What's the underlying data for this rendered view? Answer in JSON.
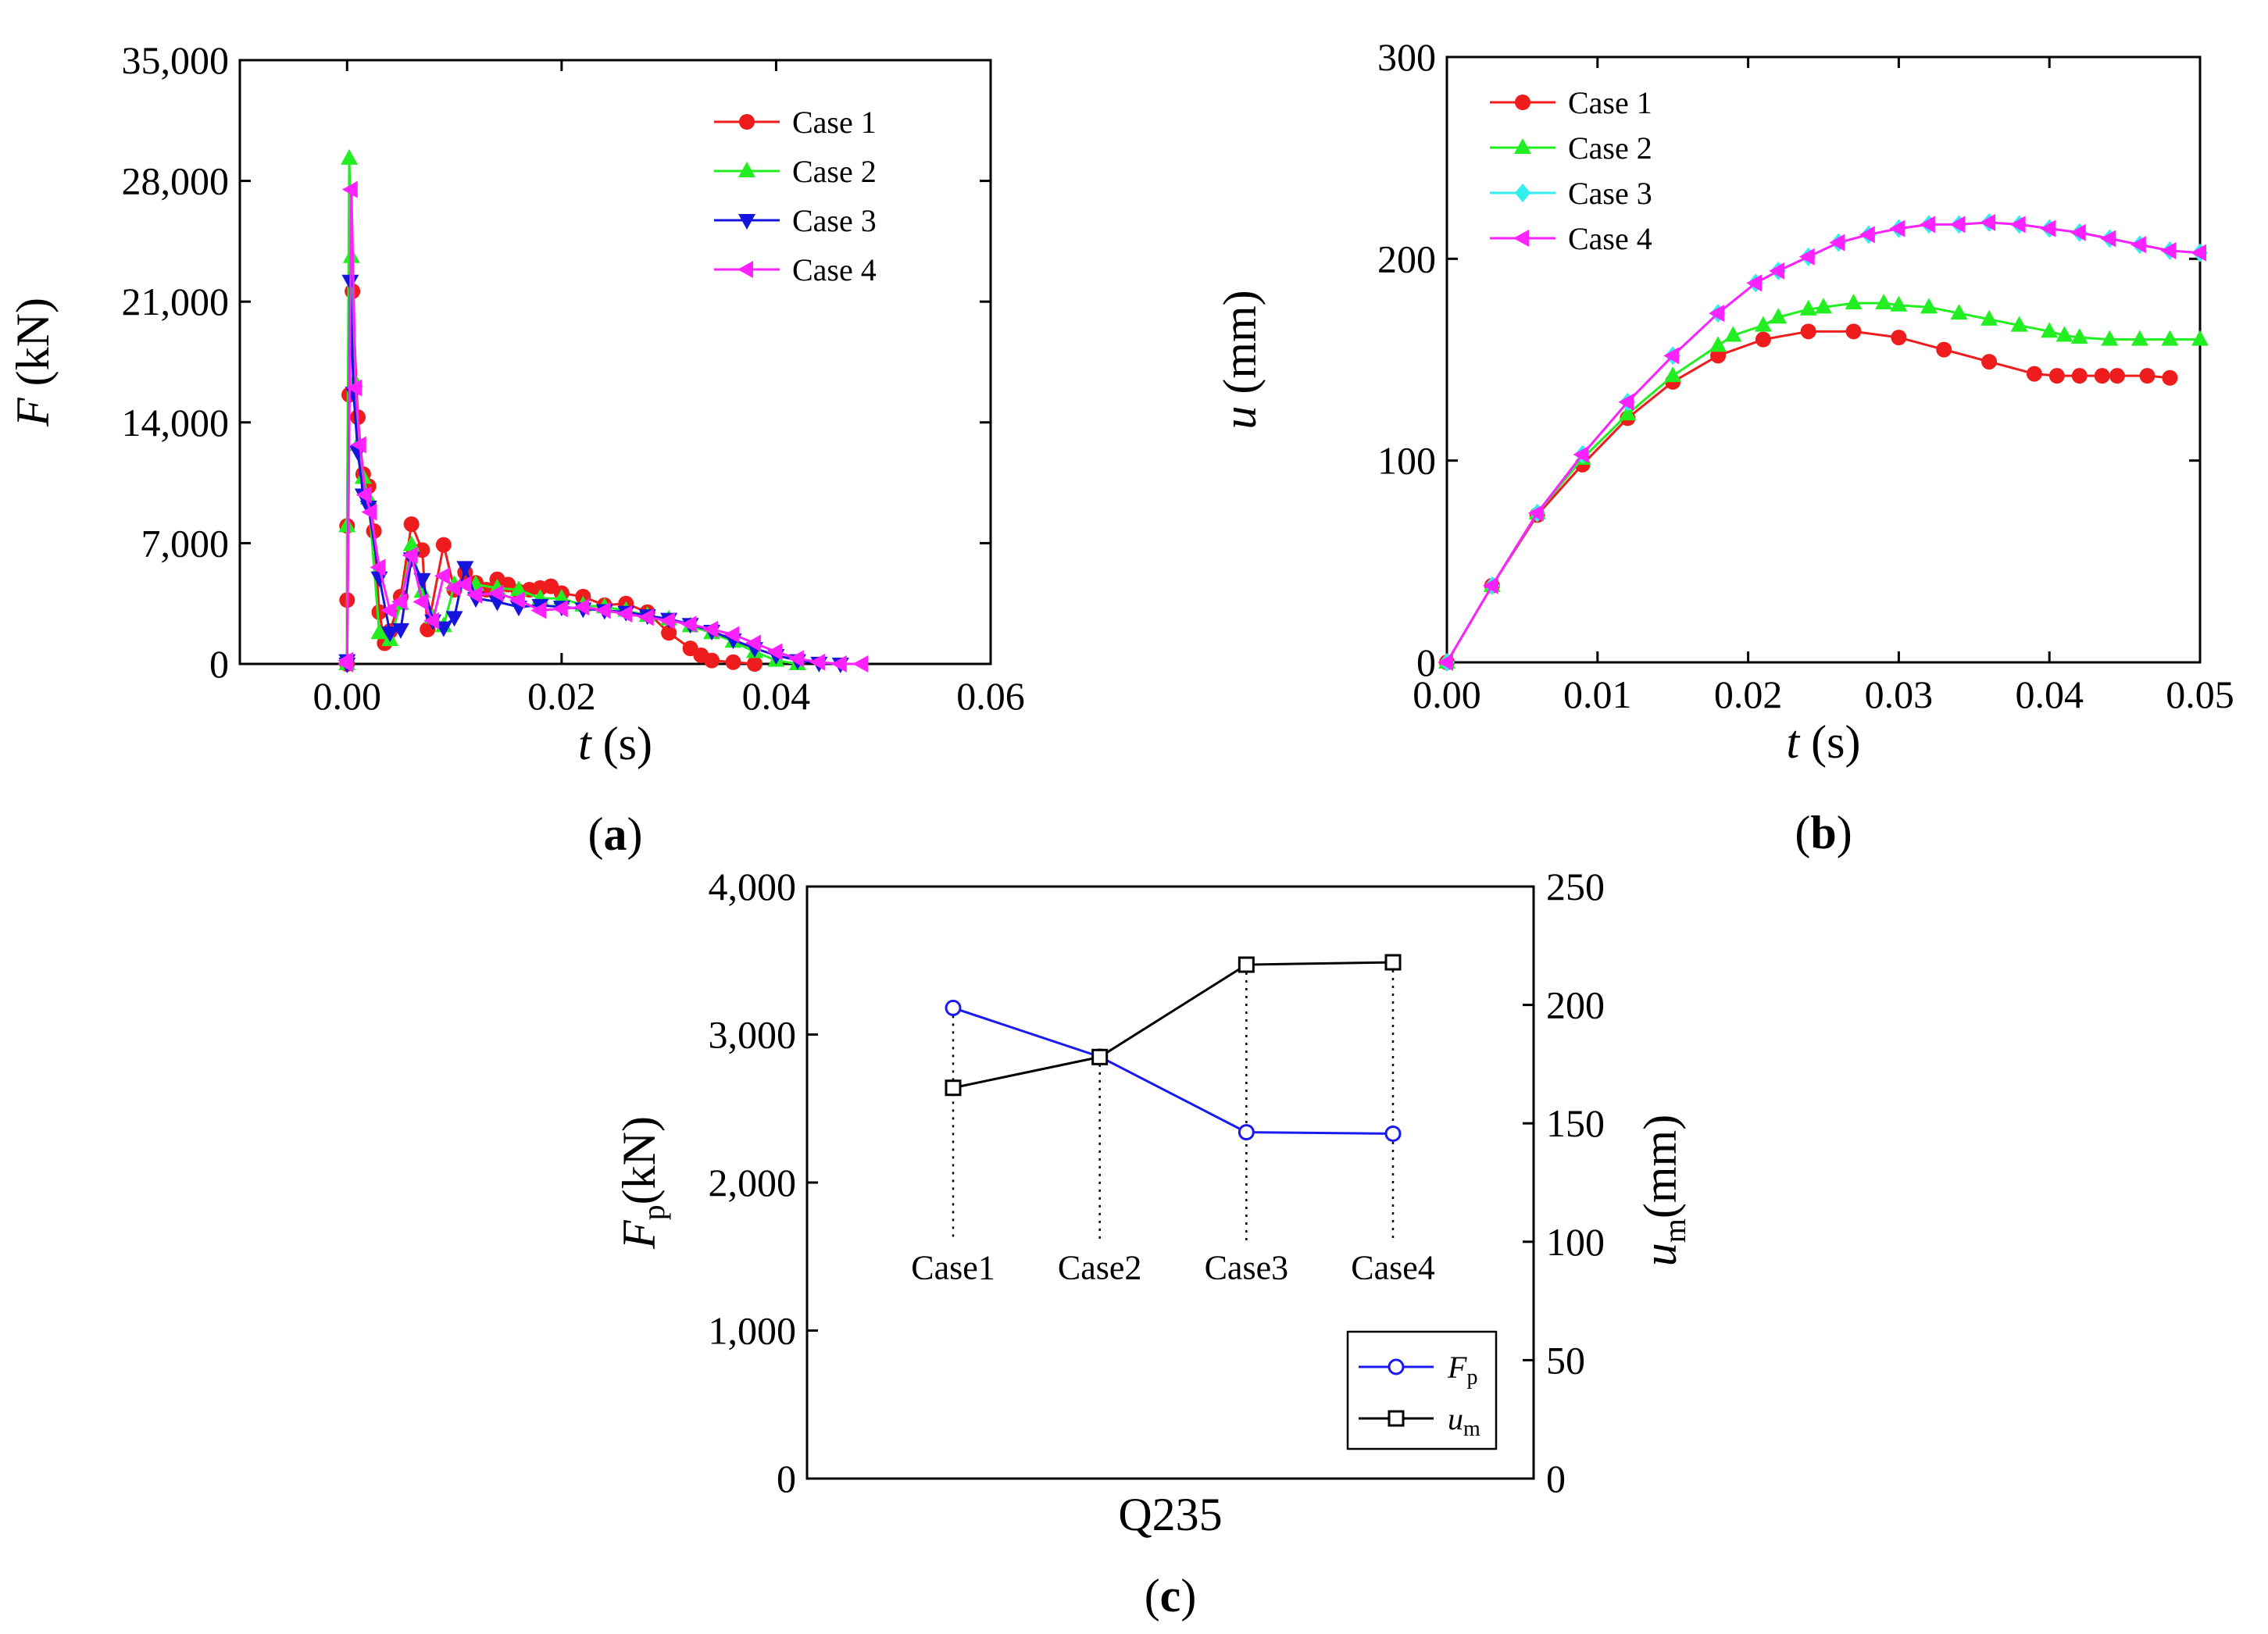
{
  "colors": {
    "case1": "#ee1c1c",
    "case2": "#22ee22",
    "case3": "#1515dd",
    "case3_b": "#33eeee",
    "case4": "#ff22ff",
    "fp": "#1a1aee",
    "um": "#000000"
  },
  "chart_data": [
    {
      "id": "a",
      "type": "line",
      "panel_label": "a",
      "xlabel_var": "t",
      "xlabel_unit": " (s)",
      "ylabel_var": "F",
      "ylabel_unit": " (kN)",
      "xlim": [
        -0.01,
        0.06
      ],
      "ylim": [
        0,
        35000
      ],
      "xticks": [
        0.0,
        0.02,
        0.04,
        0.06
      ],
      "xtick_labels": [
        "0.00",
        "0.02",
        "0.04",
        "0.06"
      ],
      "yticks": [
        0,
        7000,
        14000,
        21000,
        28000,
        35000
      ],
      "ytick_labels": [
        "0",
        "7,000",
        "14,000",
        "21,000",
        "28,000",
        "35,000"
      ],
      "legend": [
        "Case 1",
        "Case 2",
        "Case 3",
        "Case 4"
      ],
      "series": [
        {
          "name": "Case 1",
          "color_key": "case1",
          "marker": "circle",
          "x": [
            0.0,
            0.0,
            0.0,
            0.0002,
            0.0005,
            0.001,
            0.0015,
            0.002,
            0.0025,
            0.003,
            0.0035,
            0.004,
            0.005,
            0.006,
            0.007,
            0.0075,
            0.009,
            0.01,
            0.011,
            0.012,
            0.013,
            0.014,
            0.015,
            0.016,
            0.017,
            0.018,
            0.019,
            0.02,
            0.022,
            0.024,
            0.026,
            0.028,
            0.03,
            0.032,
            0.033,
            0.034,
            0.036,
            0.038
          ],
          "y": [
            0,
            3700,
            8000,
            15600,
            21600,
            14300,
            11000,
            10300,
            7700,
            3000,
            1200,
            1900,
            3900,
            8100,
            6600,
            2000,
            6900,
            4300,
            5300,
            4700,
            4300,
            4900,
            4600,
            4200,
            4300,
            4400,
            4500,
            4100,
            3900,
            3400,
            3500,
            3000,
            1800,
            900,
            500,
            200,
            100,
            0
          ]
        },
        {
          "name": "Case 2",
          "color_key": "case2",
          "marker": "triangle-up",
          "x": [
            0.0,
            0.0,
            0.0002,
            0.0004,
            0.0007,
            0.001,
            0.0015,
            0.002,
            0.003,
            0.004,
            0.005,
            0.006,
            0.007,
            0.008,
            0.009,
            0.01,
            0.012,
            0.014,
            0.016,
            0.018,
            0.02,
            0.022,
            0.024,
            0.026,
            0.028,
            0.03,
            0.032,
            0.034,
            0.036,
            0.038,
            0.04,
            0.042
          ],
          "y": [
            0,
            8000,
            29300,
            23600,
            16400,
            12700,
            10800,
            9600,
            1800,
            1400,
            3500,
            6900,
            4200,
            2700,
            2200,
            4600,
            4600,
            4400,
            4300,
            3800,
            3800,
            3400,
            3300,
            3100,
            2800,
            2600,
            2200,
            1800,
            1300,
            700,
            200,
            0
          ]
        },
        {
          "name": "Case 3",
          "color_key": "case3",
          "marker": "triangle-down",
          "x": [
            0.0,
            0.0,
            0.0003,
            0.0006,
            0.001,
            0.0015,
            0.002,
            0.003,
            0.004,
            0.005,
            0.006,
            0.007,
            0.008,
            0.009,
            0.01,
            0.011,
            0.012,
            0.014,
            0.016,
            0.018,
            0.02,
            0.022,
            0.024,
            0.026,
            0.028,
            0.03,
            0.032,
            0.034,
            0.036,
            0.038,
            0.04,
            0.042,
            0.044,
            0.046
          ],
          "y": [
            0,
            200,
            22200,
            15700,
            12300,
            9800,
            9100,
            5000,
            1800,
            2000,
            6100,
            4900,
            2500,
            2100,
            2700,
            5600,
            3800,
            3600,
            3300,
            3400,
            3300,
            3200,
            3100,
            3000,
            2800,
            2600,
            2300,
            1900,
            1400,
            900,
            500,
            200,
            50,
            0
          ]
        },
        {
          "name": "Case 4",
          "color_key": "case4",
          "marker": "triangle-left",
          "x": [
            0.0,
            0.0,
            0.0004,
            0.0008,
            0.0012,
            0.0017,
            0.0022,
            0.003,
            0.004,
            0.005,
            0.006,
            0.007,
            0.008,
            0.009,
            0.01,
            0.011,
            0.012,
            0.014,
            0.016,
            0.018,
            0.02,
            0.022,
            0.024,
            0.026,
            0.028,
            0.03,
            0.032,
            0.034,
            0.036,
            0.038,
            0.04,
            0.042,
            0.044,
            0.046,
            0.048
          ],
          "y": [
            0,
            200,
            27500,
            16000,
            12700,
            9800,
            8800,
            5600,
            3100,
            3600,
            6300,
            3600,
            2500,
            5100,
            4400,
            4600,
            4000,
            4100,
            3700,
            3100,
            3200,
            3300,
            3100,
            2900,
            2700,
            2500,
            2300,
            2000,
            1700,
            1200,
            700,
            300,
            100,
            0,
            0
          ]
        }
      ]
    },
    {
      "id": "b",
      "type": "line",
      "panel_label": "b",
      "xlabel_var": "t",
      "xlabel_unit": " (s)",
      "ylabel_var": "u",
      "ylabel_unit": " (mm)",
      "xlim": [
        0,
        0.05
      ],
      "ylim": [
        0,
        300
      ],
      "xticks": [
        0.0,
        0.01,
        0.02,
        0.03,
        0.04,
        0.05
      ],
      "xtick_labels": [
        "0.00",
        "0.01",
        "0.02",
        "0.03",
        "0.04",
        "0.05"
      ],
      "yticks": [
        0,
        100,
        200,
        300
      ],
      "ytick_labels": [
        "0",
        "100",
        "200",
        "300"
      ],
      "legend": [
        "Case 1",
        "Case 2",
        "Case 3",
        "Case 4"
      ],
      "series": [
        {
          "name": "Case 1",
          "color_key": "case1",
          "marker": "circle",
          "x": [
            0,
            0.003,
            0.006,
            0.009,
            0.012,
            0.015,
            0.018,
            0.021,
            0.024,
            0.027,
            0.03,
            0.033,
            0.036,
            0.039,
            0.0405,
            0.042,
            0.0435,
            0.0445,
            0.0465,
            0.048
          ],
          "y": [
            0,
            38,
            73,
            98,
            121,
            139,
            152,
            160,
            164,
            164,
            161,
            155,
            149,
            143,
            142,
            142,
            142,
            142,
            142,
            141
          ]
        },
        {
          "name": "Case 2",
          "color_key": "case2",
          "marker": "triangle-up",
          "x": [
            0,
            0.003,
            0.006,
            0.009,
            0.012,
            0.015,
            0.018,
            0.019,
            0.021,
            0.022,
            0.024,
            0.025,
            0.027,
            0.029,
            0.03,
            0.032,
            0.034,
            0.036,
            0.038,
            0.04,
            0.041,
            0.042,
            0.044,
            0.046,
            0.048,
            0.05
          ],
          "y": [
            0,
            38,
            74,
            101,
            123,
            142,
            157,
            162,
            167,
            171,
            175,
            176,
            178,
            178,
            177,
            176,
            173,
            170,
            167,
            164,
            162,
            161,
            160,
            160,
            160,
            160
          ]
        },
        {
          "name": "Case 3",
          "color_key": "case3_b",
          "marker": "diamond",
          "x": [
            0,
            0.003,
            0.006,
            0.009,
            0.012,
            0.015,
            0.018,
            0.0205,
            0.022,
            0.024,
            0.026,
            0.028,
            0.03,
            0.032,
            0.034,
            0.036,
            0.038,
            0.04,
            0.042,
            0.044,
            0.046,
            0.048,
            0.05
          ],
          "y": [
            0,
            38,
            74,
            103,
            129,
            152,
            173,
            188,
            194,
            201,
            208,
            212,
            215,
            217,
            217,
            218,
            217,
            215,
            213,
            210,
            207,
            204,
            203
          ]
        },
        {
          "name": "Case 4",
          "color_key": "case4",
          "marker": "triangle-left",
          "x": [
            0,
            0.003,
            0.006,
            0.009,
            0.012,
            0.015,
            0.018,
            0.0205,
            0.022,
            0.024,
            0.026,
            0.028,
            0.03,
            0.032,
            0.034,
            0.036,
            0.038,
            0.04,
            0.042,
            0.044,
            0.046,
            0.048,
            0.05
          ],
          "y": [
            0,
            38,
            74,
            103,
            129,
            152,
            173,
            188,
            194,
            201,
            208,
            212,
            215,
            217,
            217,
            218,
            217,
            215,
            213,
            210,
            207,
            204,
            203
          ]
        }
      ]
    },
    {
      "id": "c",
      "type": "line",
      "panel_label": "c",
      "xlabel": "Q235",
      "ylabel_left_var": "F",
      "ylabel_left_sub": "p",
      "ylabel_left_unit": "(kN)",
      "ylabel_right_var": "u",
      "ylabel_right_sub": "m",
      "ylabel_right_unit": "(mm)",
      "ylim_left": [
        0,
        4000
      ],
      "ylim_right": [
        0,
        250
      ],
      "yticks_left": [
        0,
        1000,
        2000,
        3000,
        4000
      ],
      "ytick_labels_left": [
        "0",
        "1,000",
        "2,000",
        "3,000",
        "4,000"
      ],
      "yticks_right": [
        0,
        50,
        100,
        150,
        200,
        250
      ],
      "ytick_labels_right": [
        "0",
        "50",
        "100",
        "150",
        "200",
        "250"
      ],
      "categories": [
        "Case1",
        "Case2",
        "Case3",
        "Case4"
      ],
      "category_label_value_left": 1550,
      "legend": [
        {
          "var": "F",
          "sub": "p",
          "color_key": "fp",
          "marker": "circle"
        },
        {
          "var": "u",
          "sub": "m",
          "color_key": "um",
          "marker": "square"
        }
      ],
      "series": [
        {
          "name": "Fp",
          "axis": "left",
          "color_key": "fp",
          "marker": "circle",
          "values": [
            3180,
            2850,
            2340,
            2330
          ]
        },
        {
          "name": "um",
          "axis": "right",
          "color_key": "um",
          "marker": "square",
          "values": [
            165,
            178,
            217,
            218
          ]
        }
      ]
    }
  ]
}
